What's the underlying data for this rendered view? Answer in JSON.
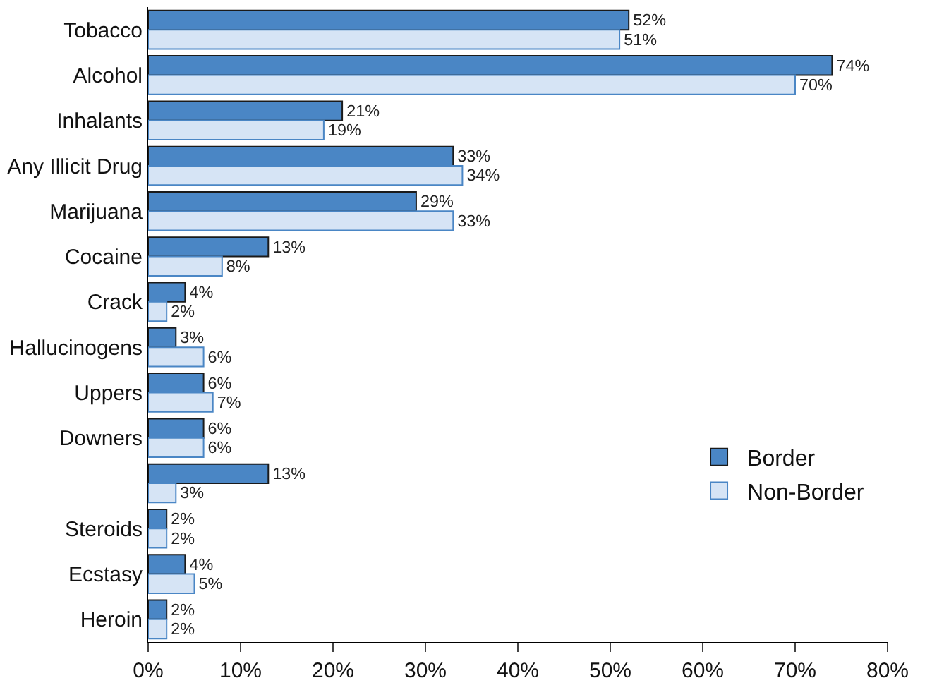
{
  "chart_data": {
    "type": "bar",
    "orientation": "horizontal",
    "categories": [
      "Tobacco",
      "Alcohol",
      "Inhalants",
      "Any Illicit Drug",
      "Marijuana",
      "Cocaine",
      "Crack",
      "Hallucinogens",
      "Uppers",
      "Downers",
      null,
      "Steroids",
      "Ecstasy",
      "Heroin"
    ],
    "series": [
      {
        "name": "Border",
        "color": "#4a86c5",
        "values": [
          52,
          74,
          21,
          33,
          29,
          13,
          4,
          3,
          6,
          6,
          13,
          2,
          4,
          2
        ],
        "value_labels": [
          "52%",
          "74%",
          "21%",
          "33%",
          "29%",
          "13%",
          "4%",
          "3%",
          "6%",
          "6%",
          "13%",
          "2%",
          "4%",
          "2%"
        ]
      },
      {
        "name": "Non-Border",
        "color": "#d6e4f5",
        "values": [
          51,
          70,
          19,
          34,
          33,
          8,
          2,
          6,
          7,
          6,
          3,
          2,
          5,
          2
        ],
        "value_labels": [
          "51%",
          "70%",
          "19%",
          "34%",
          "33%",
          "8%",
          "2%",
          "6%",
          "7%",
          "6%",
          "3%",
          "2%",
          "5%",
          "2%"
        ]
      }
    ],
    "xlim": [
      0,
      80
    ],
    "xticks": [
      {
        "value": 0,
        "label": "0%"
      },
      {
        "value": 10,
        "label": "10%"
      },
      {
        "value": 20,
        "label": "20%"
      },
      {
        "value": 30,
        "label": "30%"
      },
      {
        "value": 40,
        "label": "40%"
      },
      {
        "value": 50,
        "label": "50%"
      },
      {
        "value": 60,
        "label": "60%"
      },
      {
        "value": 70,
        "label": "70%"
      },
      {
        "value": 80,
        "label": "80%"
      }
    ],
    "legend": "bottom right"
  }
}
